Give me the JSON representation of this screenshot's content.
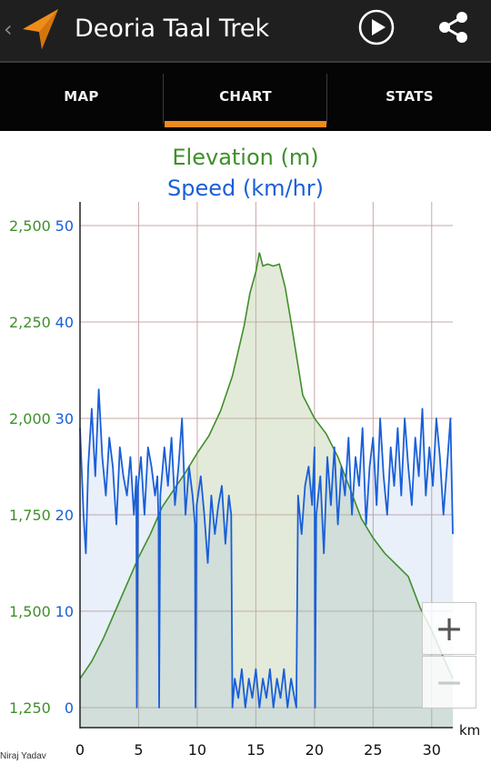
{
  "appbar": {
    "title": "Deoria Taal Trek",
    "back_icon": "chevron-left-icon",
    "logo_icon": "navigation-arrow-icon",
    "play_icon": "play-icon",
    "share_icon": "share-icon",
    "back_glyph": "‹"
  },
  "tabs": [
    {
      "label": "MAP",
      "selected": false
    },
    {
      "label": "CHART",
      "selected": true
    },
    {
      "label": "STATS",
      "selected": false
    }
  ],
  "colors": {
    "accent": "#ef8a1d",
    "elevation": "#3f8f2a",
    "speed": "#1a5fd8"
  },
  "zoom": {
    "in_label": "+",
    "out_label": "−"
  },
  "attribution": "Niraj Yadav",
  "chart_data": {
    "type": "area",
    "title": "Elevation (m)",
    "subtitle": "Speed (km/hr)",
    "xlabel": "km",
    "x_ticks": [
      "0",
      "5",
      "10",
      "15",
      "20",
      "25",
      "30"
    ],
    "xlim": [
      0,
      31.8
    ],
    "grid": true,
    "y_left": {
      "label": "Elevation (m)",
      "ticks": [
        "1,250",
        "1,500",
        "1,750",
        "2,000",
        "2,250",
        "2,500"
      ],
      "lim": [
        1250,
        2500
      ]
    },
    "y_right": {
      "label": "Speed (km/hr)",
      "ticks": [
        "0",
        "10",
        "20",
        "30",
        "40",
        "50"
      ],
      "lim": [
        0,
        50
      ]
    },
    "series": [
      {
        "name": "Elevation (m)",
        "axis": "left",
        "x": [
          0,
          1,
          2,
          3,
          4,
          5,
          6,
          7,
          8,
          9,
          10,
          11,
          12,
          13,
          14,
          14.5,
          15,
          15.3,
          15.6,
          16,
          16.5,
          17,
          17.5,
          18,
          19,
          20,
          21,
          22,
          23,
          24,
          25,
          26,
          27,
          28,
          29,
          30,
          31,
          31.8
        ],
        "y": [
          1325,
          1370,
          1430,
          1500,
          1570,
          1640,
          1700,
          1770,
          1815,
          1860,
          1910,
          1955,
          2020,
          2110,
          2240,
          2325,
          2380,
          2430,
          2395,
          2400,
          2395,
          2400,
          2340,
          2250,
          2060,
          2000,
          1960,
          1900,
          1820,
          1740,
          1690,
          1650,
          1620,
          1590,
          1510,
          1450,
          1380,
          1325
        ]
      },
      {
        "name": "Speed (km/hr)",
        "axis": "right",
        "x": [
          0,
          0.3,
          0.5,
          0.7,
          1,
          1.3,
          1.6,
          1.9,
          2.2,
          2.5,
          2.8,
          3.1,
          3.4,
          3.7,
          4,
          4.3,
          4.6,
          4.8,
          4.85,
          4.95,
          5.2,
          5.5,
          5.8,
          6.1,
          6.4,
          6.6,
          6.7,
          6.75,
          6.85,
          7.2,
          7.5,
          7.8,
          8.1,
          8.4,
          8.7,
          9,
          9.3,
          9.6,
          9.8,
          9.85,
          9.95,
          10.3,
          10.6,
          10.9,
          11.2,
          11.5,
          11.8,
          12.1,
          12.4,
          12.7,
          12.9,
          13.0,
          13.2,
          13.5,
          13.8,
          14.1,
          14.4,
          14.7,
          15.0,
          15.3,
          15.6,
          15.9,
          16.2,
          16.5,
          16.8,
          17.1,
          17.4,
          17.7,
          18.0,
          18.3,
          18.45,
          18.6,
          18.9,
          19.2,
          19.5,
          19.8,
          20.0,
          20.05,
          20.15,
          20.5,
          20.8,
          21.1,
          21.4,
          21.7,
          22.0,
          22.3,
          22.6,
          22.9,
          23.2,
          23.5,
          23.8,
          24.1,
          24.4,
          24.7,
          25.0,
          25.3,
          25.6,
          25.9,
          26.2,
          26.5,
          26.8,
          27.1,
          27.4,
          27.7,
          28.0,
          28.3,
          28.6,
          28.9,
          29.2,
          29.5,
          29.8,
          30.1,
          30.4,
          30.7,
          31.0,
          31.3,
          31.6,
          31.8
        ],
        "y": [
          29,
          20,
          16,
          25,
          31,
          24,
          33,
          26,
          22,
          28,
          25,
          19,
          27,
          24,
          22,
          26,
          20,
          24,
          0,
          23,
          26,
          20,
          27,
          25,
          22,
          24,
          19,
          0,
          22,
          27,
          23,
          28,
          21,
          25,
          30,
          20,
          25,
          22,
          19,
          0,
          21,
          24,
          20,
          15,
          22,
          18,
          21,
          23,
          17,
          22,
          20,
          0,
          3,
          1,
          4,
          0,
          3,
          1,
          4,
          0,
          3,
          1,
          4,
          0,
          3,
          1,
          4,
          0,
          3,
          1,
          0,
          22,
          18,
          23,
          25,
          21,
          27,
          0,
          20,
          24,
          16,
          26,
          21,
          27,
          19,
          25,
          22,
          28,
          20,
          26,
          23,
          29,
          19,
          25,
          28,
          21,
          30,
          24,
          20,
          27,
          23,
          29,
          22,
          30,
          25,
          21,
          28,
          24,
          31,
          22,
          27,
          23,
          30,
          26,
          20,
          25,
          30,
          18
        ]
      }
    ]
  }
}
